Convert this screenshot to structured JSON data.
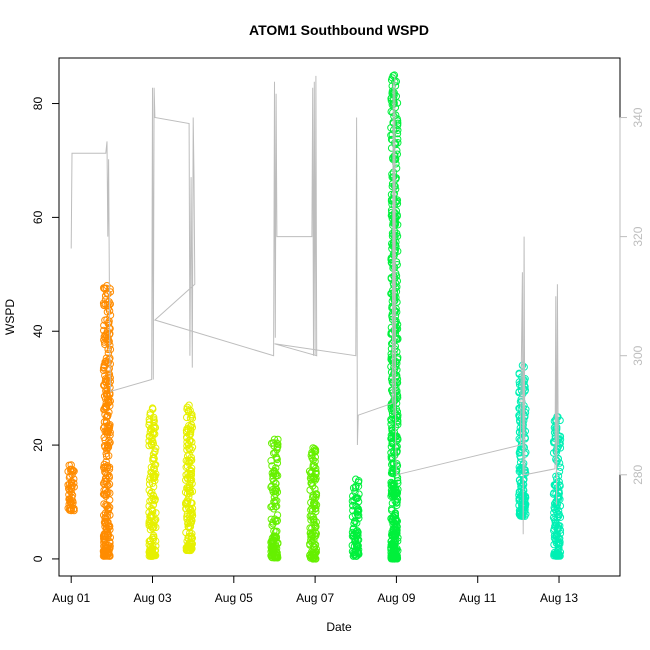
{
  "chart_data": {
    "type": "scatter",
    "title": "ATOM1 Southbound WSPD",
    "xlabel": "Date",
    "ylabel": "WSPD",
    "x_ticks": [
      "Aug 01",
      "Aug 03",
      "Aug 05",
      "Aug 07",
      "Aug 09",
      "Aug 11",
      "Aug 13"
    ],
    "x_range_days": [
      -0.3,
      13.5
    ],
    "y_ticks": [
      0,
      20,
      40,
      60,
      80
    ],
    "ylim": [
      -3,
      88
    ],
    "y2_ticks": [
      280,
      300,
      320,
      340
    ],
    "y2lim": [
      263,
      350
    ],
    "grid": false,
    "series": [
      {
        "color": "#ff8c00",
        "clusters": [
          {
            "day": 0.0,
            "ymin": 8.5,
            "ymax": 16.5
          },
          {
            "day": 0.88,
            "ymin": 0.5,
            "ymax": 48.0
          }
        ]
      },
      {
        "color": "#e6f000",
        "clusters": [
          {
            "day": 2.0,
            "ymin": 0.5,
            "ymax": 26.5
          },
          {
            "day": 2.9,
            "ymin": 1.5,
            "ymax": 27.0
          }
        ]
      },
      {
        "color": "#66f000",
        "clusters": [
          {
            "day": 5.0,
            "ymin": 0.2,
            "ymax": 21.0
          },
          {
            "day": 5.95,
            "ymin": 0.0,
            "ymax": 19.5
          }
        ]
      },
      {
        "color": "#00f03c",
        "clusters": [
          {
            "day": 7.0,
            "ymin": 0.5,
            "ymax": 14.0
          },
          {
            "day": 7.95,
            "ymin": 0.0,
            "ymax": 85.0
          }
        ]
      },
      {
        "color": "#00f0b4",
        "clusters": [
          {
            "day": 11.1,
            "ymin": 7.5,
            "ymax": 34.0
          },
          {
            "day": 11.95,
            "ymin": 0.5,
            "ymax": 25.0
          }
        ]
      }
    ],
    "secondary_line": {
      "color": "#bdbdbd",
      "points": [
        [
          0.0,
          318
        ],
        [
          0.02,
          334
        ],
        [
          0.85,
          334
        ],
        [
          0.88,
          336
        ],
        [
          0.9,
          320
        ],
        [
          0.92,
          333
        ],
        [
          0.95,
          300
        ],
        [
          0.97,
          294
        ],
        [
          1.98,
          296
        ],
        [
          2.0,
          345
        ],
        [
          2.02,
          296
        ],
        [
          2.04,
          345
        ],
        [
          2.06,
          340
        ],
        [
          2.9,
          339
        ],
        [
          2.92,
          300
        ],
        [
          2.95,
          330
        ],
        [
          2.98,
          298
        ],
        [
          3.0,
          340
        ],
        [
          3.02,
          330
        ],
        [
          3.04,
          312
        ],
        [
          2.06,
          306
        ],
        [
          4.98,
          300
        ],
        [
          5.0,
          346
        ],
        [
          5.02,
          303
        ],
        [
          5.04,
          344
        ],
        [
          5.06,
          320
        ],
        [
          5.92,
          320
        ],
        [
          5.94,
          345
        ],
        [
          5.96,
          300
        ],
        [
          5.98,
          346
        ],
        [
          6.0,
          300
        ],
        [
          6.02,
          347
        ],
        [
          6.04,
          300
        ],
        [
          5.0,
          302
        ],
        [
          7.0,
          300
        ],
        [
          7.02,
          340
        ],
        [
          7.04,
          285
        ],
        [
          7.06,
          290
        ],
        [
          7.9,
          292
        ],
        [
          7.92,
          346
        ],
        [
          7.94,
          290
        ],
        [
          7.96,
          347
        ],
        [
          7.98,
          286
        ],
        [
          8.0,
          280
        ],
        [
          11.05,
          285
        ],
        [
          11.1,
          314
        ],
        [
          11.12,
          270
        ],
        [
          11.14,
          320
        ],
        [
          11.16,
          280
        ],
        [
          11.9,
          281
        ],
        [
          11.92,
          310
        ],
        [
          11.94,
          275
        ],
        [
          11.96,
          312
        ],
        [
          11.98,
          285
        ]
      ]
    }
  }
}
